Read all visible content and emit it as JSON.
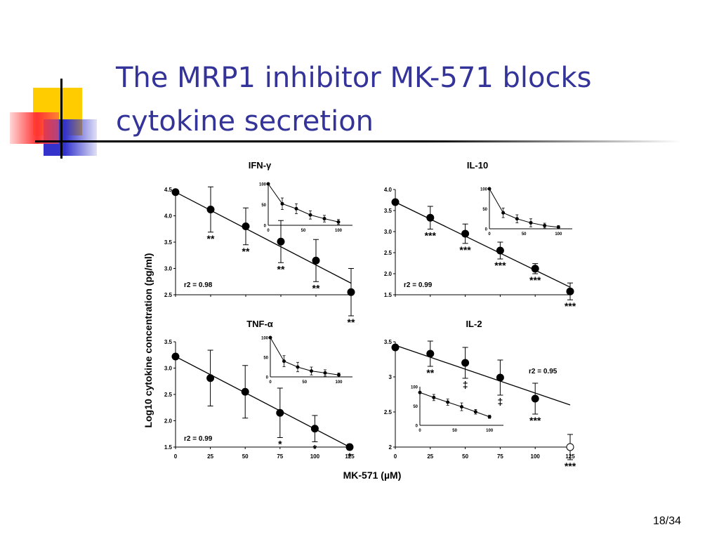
{
  "slide": {
    "title_line1": "The MRP1 inhibitor MK-571 blocks",
    "title_line2": "cytokine secretion",
    "slide_number": "18/34"
  },
  "figure": {
    "ylabel": "Log10 cytokine concentration (pg/ml)",
    "xlabel": "MK-571 (µM)"
  },
  "chart_data": [
    {
      "type": "line",
      "panel": "IFN-γ",
      "title": "IFN-γ",
      "x": [
        0,
        25,
        50,
        75,
        100,
        125
      ],
      "y": [
        4.45,
        4.12,
        3.8,
        3.51,
        3.15,
        2.55
      ],
      "err": [
        0,
        0.43,
        0.35,
        0.4,
        0.4,
        0.45
      ],
      "stars": [
        "",
        "**",
        "**",
        "**",
        "**",
        "**"
      ],
      "fit": [
        [
          0,
          4.45
        ],
        [
          125,
          2.72
        ]
      ],
      "r2": "r2 = 0.98",
      "ylim": [
        2.5,
        4.5
      ],
      "yticks": [
        "2.5",
        "3.0",
        "3.5",
        "4.0",
        "4.5"
      ],
      "xticks": [],
      "inset": {
        "x": [
          0,
          20,
          40,
          60,
          80,
          100
        ],
        "y": [
          100,
          52,
          40,
          25,
          16,
          8
        ],
        "err": [
          0,
          14,
          12,
          10,
          8,
          6
        ],
        "ylim": [
          0,
          100
        ],
        "yticks": [
          "0",
          "50",
          "100"
        ],
        "xticks": [
          "0",
          "50",
          "100"
        ]
      }
    },
    {
      "type": "line",
      "panel": "IL-10",
      "title": "IL-10",
      "x": [
        0,
        25,
        50,
        75,
        100,
        125
      ],
      "y": [
        3.7,
        3.33,
        2.95,
        2.55,
        2.12,
        1.58
      ],
      "err": [
        0,
        0.27,
        0.23,
        0.2,
        0.12,
        0.2
      ],
      "stars": [
        "",
        "***",
        "***",
        "***",
        "***",
        "***"
      ],
      "fit": [
        [
          0,
          3.7
        ],
        [
          125,
          1.68
        ]
      ],
      "r2": "r2 = 0.99",
      "ylim": [
        1.5,
        4.0
      ],
      "yticks": [
        "1.5",
        "2.0",
        "2.5",
        "3.0",
        "3.5",
        "4.0"
      ],
      "xticks": [],
      "inset": {
        "x": [
          0,
          20,
          40,
          60,
          80,
          100
        ],
        "y": [
          100,
          40,
          25,
          15,
          8,
          4
        ],
        "err": [
          0,
          12,
          10,
          10,
          6,
          4
        ],
        "ylim": [
          0,
          100
        ],
        "yticks": [
          "0",
          "50",
          "100"
        ],
        "xticks": [
          "0",
          "50",
          "100"
        ]
      }
    },
    {
      "type": "line",
      "panel": "TNF-α",
      "title": "TNF-α",
      "x": [
        0,
        25,
        50,
        75,
        100,
        125
      ],
      "y": [
        3.22,
        2.81,
        2.55,
        2.15,
        1.85,
        1.5
      ],
      "err": [
        0,
        0.53,
        0.5,
        0.47,
        0.25,
        0.05
      ],
      "stars": [
        "",
        "",
        "",
        "*",
        "*",
        "*"
      ],
      "fit": [
        [
          0,
          3.22
        ],
        [
          125,
          1.5
        ]
      ],
      "r2": "r2 = 0.99",
      "ylim": [
        1.5,
        3.5
      ],
      "yticks": [
        "1.5",
        "2.0",
        "2.5",
        "3.0",
        "3.5"
      ],
      "xticks": [
        "0",
        "25",
        "50",
        "75",
        "100",
        "125"
      ],
      "inset": {
        "x": [
          0,
          20,
          40,
          60,
          80,
          100
        ],
        "y": [
          100,
          40,
          25,
          15,
          10,
          5
        ],
        "err": [
          0,
          14,
          12,
          10,
          8,
          5
        ],
        "ylim": [
          0,
          100
        ],
        "yticks": [
          "0",
          "50",
          "100"
        ],
        "xticks": [
          "0",
          "50",
          "100"
        ]
      }
    },
    {
      "type": "line",
      "panel": "IL-2",
      "title": "IL-2",
      "x": [
        0,
        25,
        50,
        75,
        100,
        125
      ],
      "y": [
        3.42,
        3.33,
        3.2,
        2.99,
        2.69,
        2.0
      ],
      "err": [
        0,
        0.18,
        0.22,
        0.25,
        0.22,
        0.18
      ],
      "stars": [
        "",
        "**",
        "‡",
        "‡",
        "***",
        "***"
      ],
      "open_last": true,
      "fit": [
        [
          0,
          3.45
        ],
        [
          125,
          2.6
        ]
      ],
      "r2": "r2 = 0.95",
      "ylim": [
        2.0,
        3.5
      ],
      "yticks": [
        "2",
        "2.5",
        "3",
        "3.5"
      ],
      "xticks": [
        "0",
        "25",
        "50",
        "75",
        "100",
        "125"
      ],
      "inset": {
        "x": [
          0,
          20,
          40,
          60,
          80,
          100
        ],
        "y": [
          85,
          72,
          60,
          48,
          35,
          22
        ],
        "err": [
          0,
          8,
          8,
          10,
          6,
          4
        ],
        "ylim": [
          0,
          100
        ],
        "yticks": [
          "0",
          "50",
          "100"
        ],
        "xticks": [
          "0",
          "50",
          "100"
        ]
      }
    }
  ],
  "colors": {
    "title": "#333399",
    "deco_yellow": "#ffcc00",
    "deco_red": "#ff3333",
    "deco_blue": "#3333cc"
  }
}
